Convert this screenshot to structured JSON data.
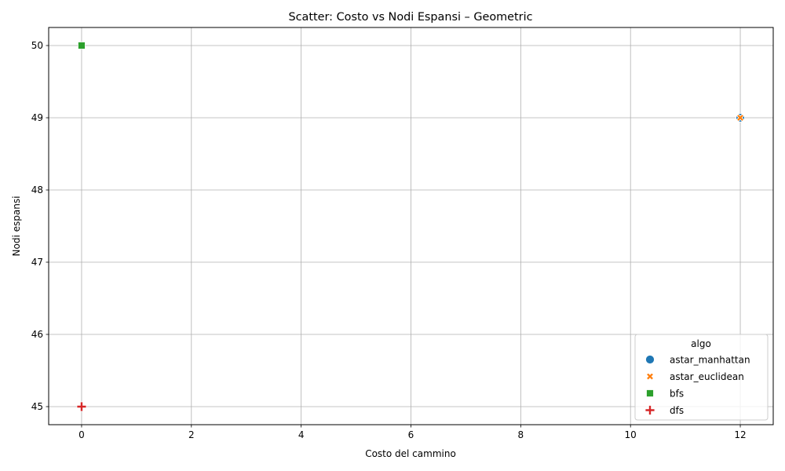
{
  "chart_data": {
    "type": "scatter",
    "title": "Scatter: Costo vs Nodi Espansi – Geometric",
    "xlabel": "Costo del cammino",
    "ylabel": "Nodi espansi",
    "xlim": [
      -0.6,
      12.6
    ],
    "ylim": [
      44.75,
      50.25
    ],
    "xticks": [
      0,
      2,
      4,
      6,
      8,
      10,
      12
    ],
    "yticks": [
      45,
      46,
      47,
      48,
      49,
      50
    ],
    "grid": true,
    "legend": {
      "title": "algo",
      "placement": "lower-right"
    },
    "series": [
      {
        "name": "astar_manhattan",
        "marker": "circle",
        "color": "#1f77b4",
        "points": [
          {
            "x": 12,
            "y": 49
          }
        ]
      },
      {
        "name": "astar_euclidean",
        "marker": "x",
        "color": "#ff7f0e",
        "points": [
          {
            "x": 12,
            "y": 49
          }
        ]
      },
      {
        "name": "bfs",
        "marker": "square",
        "color": "#2ca02c",
        "points": [
          {
            "x": 0,
            "y": 50
          }
        ]
      },
      {
        "name": "dfs",
        "marker": "plus",
        "color": "#d62728",
        "points": [
          {
            "x": 0,
            "y": 45
          }
        ]
      }
    ]
  }
}
